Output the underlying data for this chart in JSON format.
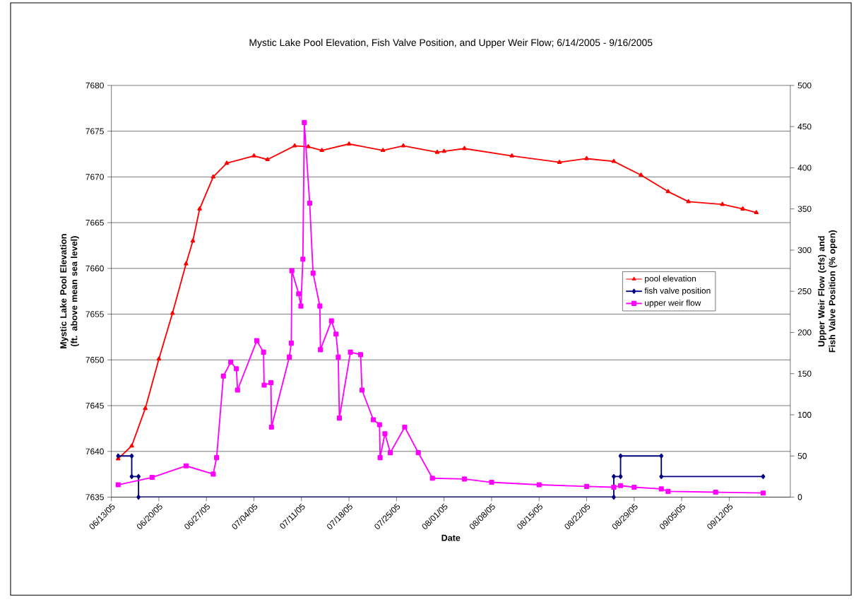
{
  "chart_data": {
    "type": "line",
    "title": "Mystic Lake Pool Elevation, Fish Valve Position, and Upper Weir Flow;  6/14/2005 - 9/16/2005",
    "xlabel": "Date",
    "ylabel": "Mystic Lake Pool Elevation (ft. above mean sea level)",
    "y2label": "Upper Weir Flow (cfs) and Fish Valve Position (% open)",
    "xlim": [
      "2005-06-13",
      "2005-09-21"
    ],
    "xticks": [
      {
        "value": "2005-06-13",
        "label": "06/13/05"
      },
      {
        "value": "2005-06-20",
        "label": "06/20/05"
      },
      {
        "value": "2005-06-27",
        "label": "06/27/05"
      },
      {
        "value": "2005-07-04",
        "label": "07/04/05"
      },
      {
        "value": "2005-07-11",
        "label": "07/11/05"
      },
      {
        "value": "2005-07-18",
        "label": "07/18/05"
      },
      {
        "value": "2005-07-25",
        "label": "07/25/05"
      },
      {
        "value": "2005-08-01",
        "label": "08/01/05"
      },
      {
        "value": "2005-08-08",
        "label": "08/08/05"
      },
      {
        "value": "2005-08-15",
        "label": "08/15/05"
      },
      {
        "value": "2005-08-22",
        "label": "08/22/05"
      },
      {
        "value": "2005-08-29",
        "label": "08/29/05"
      },
      {
        "value": "2005-09-05",
        "label": "09/05/05"
      },
      {
        "value": "2005-09-12",
        "label": "09/12/05"
      }
    ],
    "ylim": [
      7635,
      7680
    ],
    "yticks": [
      7635,
      7640,
      7645,
      7650,
      7655,
      7660,
      7665,
      7670,
      7675,
      7680
    ],
    "y2lim": [
      0,
      500
    ],
    "y2ticks": [
      0,
      50,
      100,
      150,
      200,
      250,
      300,
      350,
      400,
      450,
      500
    ],
    "grid": "y",
    "legend": "right",
    "line_style": "solid",
    "series": [
      {
        "name": "pool elevation",
        "color": "#ff0000",
        "marker": "triangle",
        "x": [
          "2005-06-14",
          "2005-06-16",
          "2005-06-18",
          "2005-06-20",
          "2005-06-22",
          "2005-06-24",
          "2005-06-25",
          "2005-06-26",
          "2005-06-28",
          "2005-06-30",
          "2005-07-04",
          "2005-07-06",
          "2005-07-10",
          "2005-07-12",
          "2005-07-14",
          "2005-07-18",
          "2005-07-23",
          "2005-07-26",
          "2005-07-31",
          "2005-08-01",
          "2005-08-04",
          "2005-08-11",
          "2005-08-18",
          "2005-08-22",
          "2005-08-26",
          "2005-08-30",
          "2005-09-03",
          "2005-09-06",
          "2005-09-11",
          "2005-09-14",
          "2005-09-16"
        ],
        "values": [
          7639.2,
          7640.6,
          7644.7,
          7650.1,
          7655.1,
          7660.5,
          7663,
          7666.5,
          7670,
          7671.5,
          7672.3,
          7671.9,
          7673.4,
          7673.3,
          7672.9,
          7673.6,
          7672.9,
          7673.4,
          7672.7,
          7672.8,
          7673.1,
          7672.3,
          7671.6,
          7672.0,
          7671.7,
          7670.2,
          7668.4,
          7667.3,
          7667.0,
          7666.5,
          7666.1
        ]
      },
      {
        "name": "fish valve position",
        "color": "#000080",
        "marker": "diamond",
        "axis": "y2",
        "x": [
          "2005-06-14",
          "2005-06-16",
          "2005-06-16",
          "2005-06-17",
          "2005-06-17",
          "2005-08-26",
          "2005-08-26",
          "2005-08-27",
          "2005-08-27",
          "2005-09-02",
          "2005-09-02",
          "2005-09-17"
        ],
        "values": [
          50,
          50,
          25,
          25,
          0,
          0,
          25,
          25,
          50,
          50,
          25,
          25
        ]
      },
      {
        "name": "upper weir flow",
        "color": "#ff00ff",
        "marker": "square",
        "axis": "y2",
        "x": [
          "2005-06-14",
          "2005-06-19",
          "2005-06-24",
          "2005-06-28",
          "2005-06-28T12:00",
          "2005-06-29T12:00",
          "2005-06-30T14:00",
          "2005-07-01T10:00",
          "2005-07-01T14:00",
          "2005-07-04T10:00",
          "2005-07-05T10:00",
          "2005-07-05T12:00",
          "2005-07-06T12:00",
          "2005-07-06T14:00",
          "2005-07-09T05:00",
          "2005-07-09T12:00",
          "2005-07-09T14:00",
          "2005-07-10T14:00",
          "2005-07-10T22:00",
          "2005-07-11T05:00",
          "2005-07-11T10:00",
          "2005-07-12T05:00",
          "2005-07-12T17:00",
          "2005-07-13T17:00",
          "2005-07-13T19:00",
          "2005-07-15T10:00",
          "2005-07-16T02:00",
          "2005-07-16T10:00",
          "2005-07-16T14:00",
          "2005-07-18T05:00",
          "2005-07-19T17:00",
          "2005-07-19T22:00",
          "2005-07-21T14:00",
          "2005-07-22T12:00",
          "2005-07-22T14:00",
          "2005-07-23T07:00",
          "2005-07-24T02:00",
          "2005-07-26T05:00",
          "2005-07-28T05:00",
          "2005-07-30T07:00",
          "2005-08-04",
          "2005-08-08",
          "2005-08-15",
          "2005-08-22",
          "2005-08-26",
          "2005-08-27",
          "2005-08-29",
          "2005-09-02",
          "2005-09-03",
          "2005-09-10",
          "2005-09-17"
        ],
        "values": [
          15,
          24,
          38,
          28,
          48,
          147,
          164,
          156,
          130,
          190,
          176,
          136,
          139,
          85,
          170,
          187,
          275,
          247,
          232,
          289,
          455,
          357,
          272,
          232,
          179,
          214,
          198,
          170,
          96,
          176,
          173,
          130,
          94,
          88,
          48,
          77,
          54,
          85,
          54,
          23,
          22,
          18,
          15,
          13,
          12,
          14,
          12,
          10,
          7,
          6,
          5
        ]
      }
    ]
  }
}
